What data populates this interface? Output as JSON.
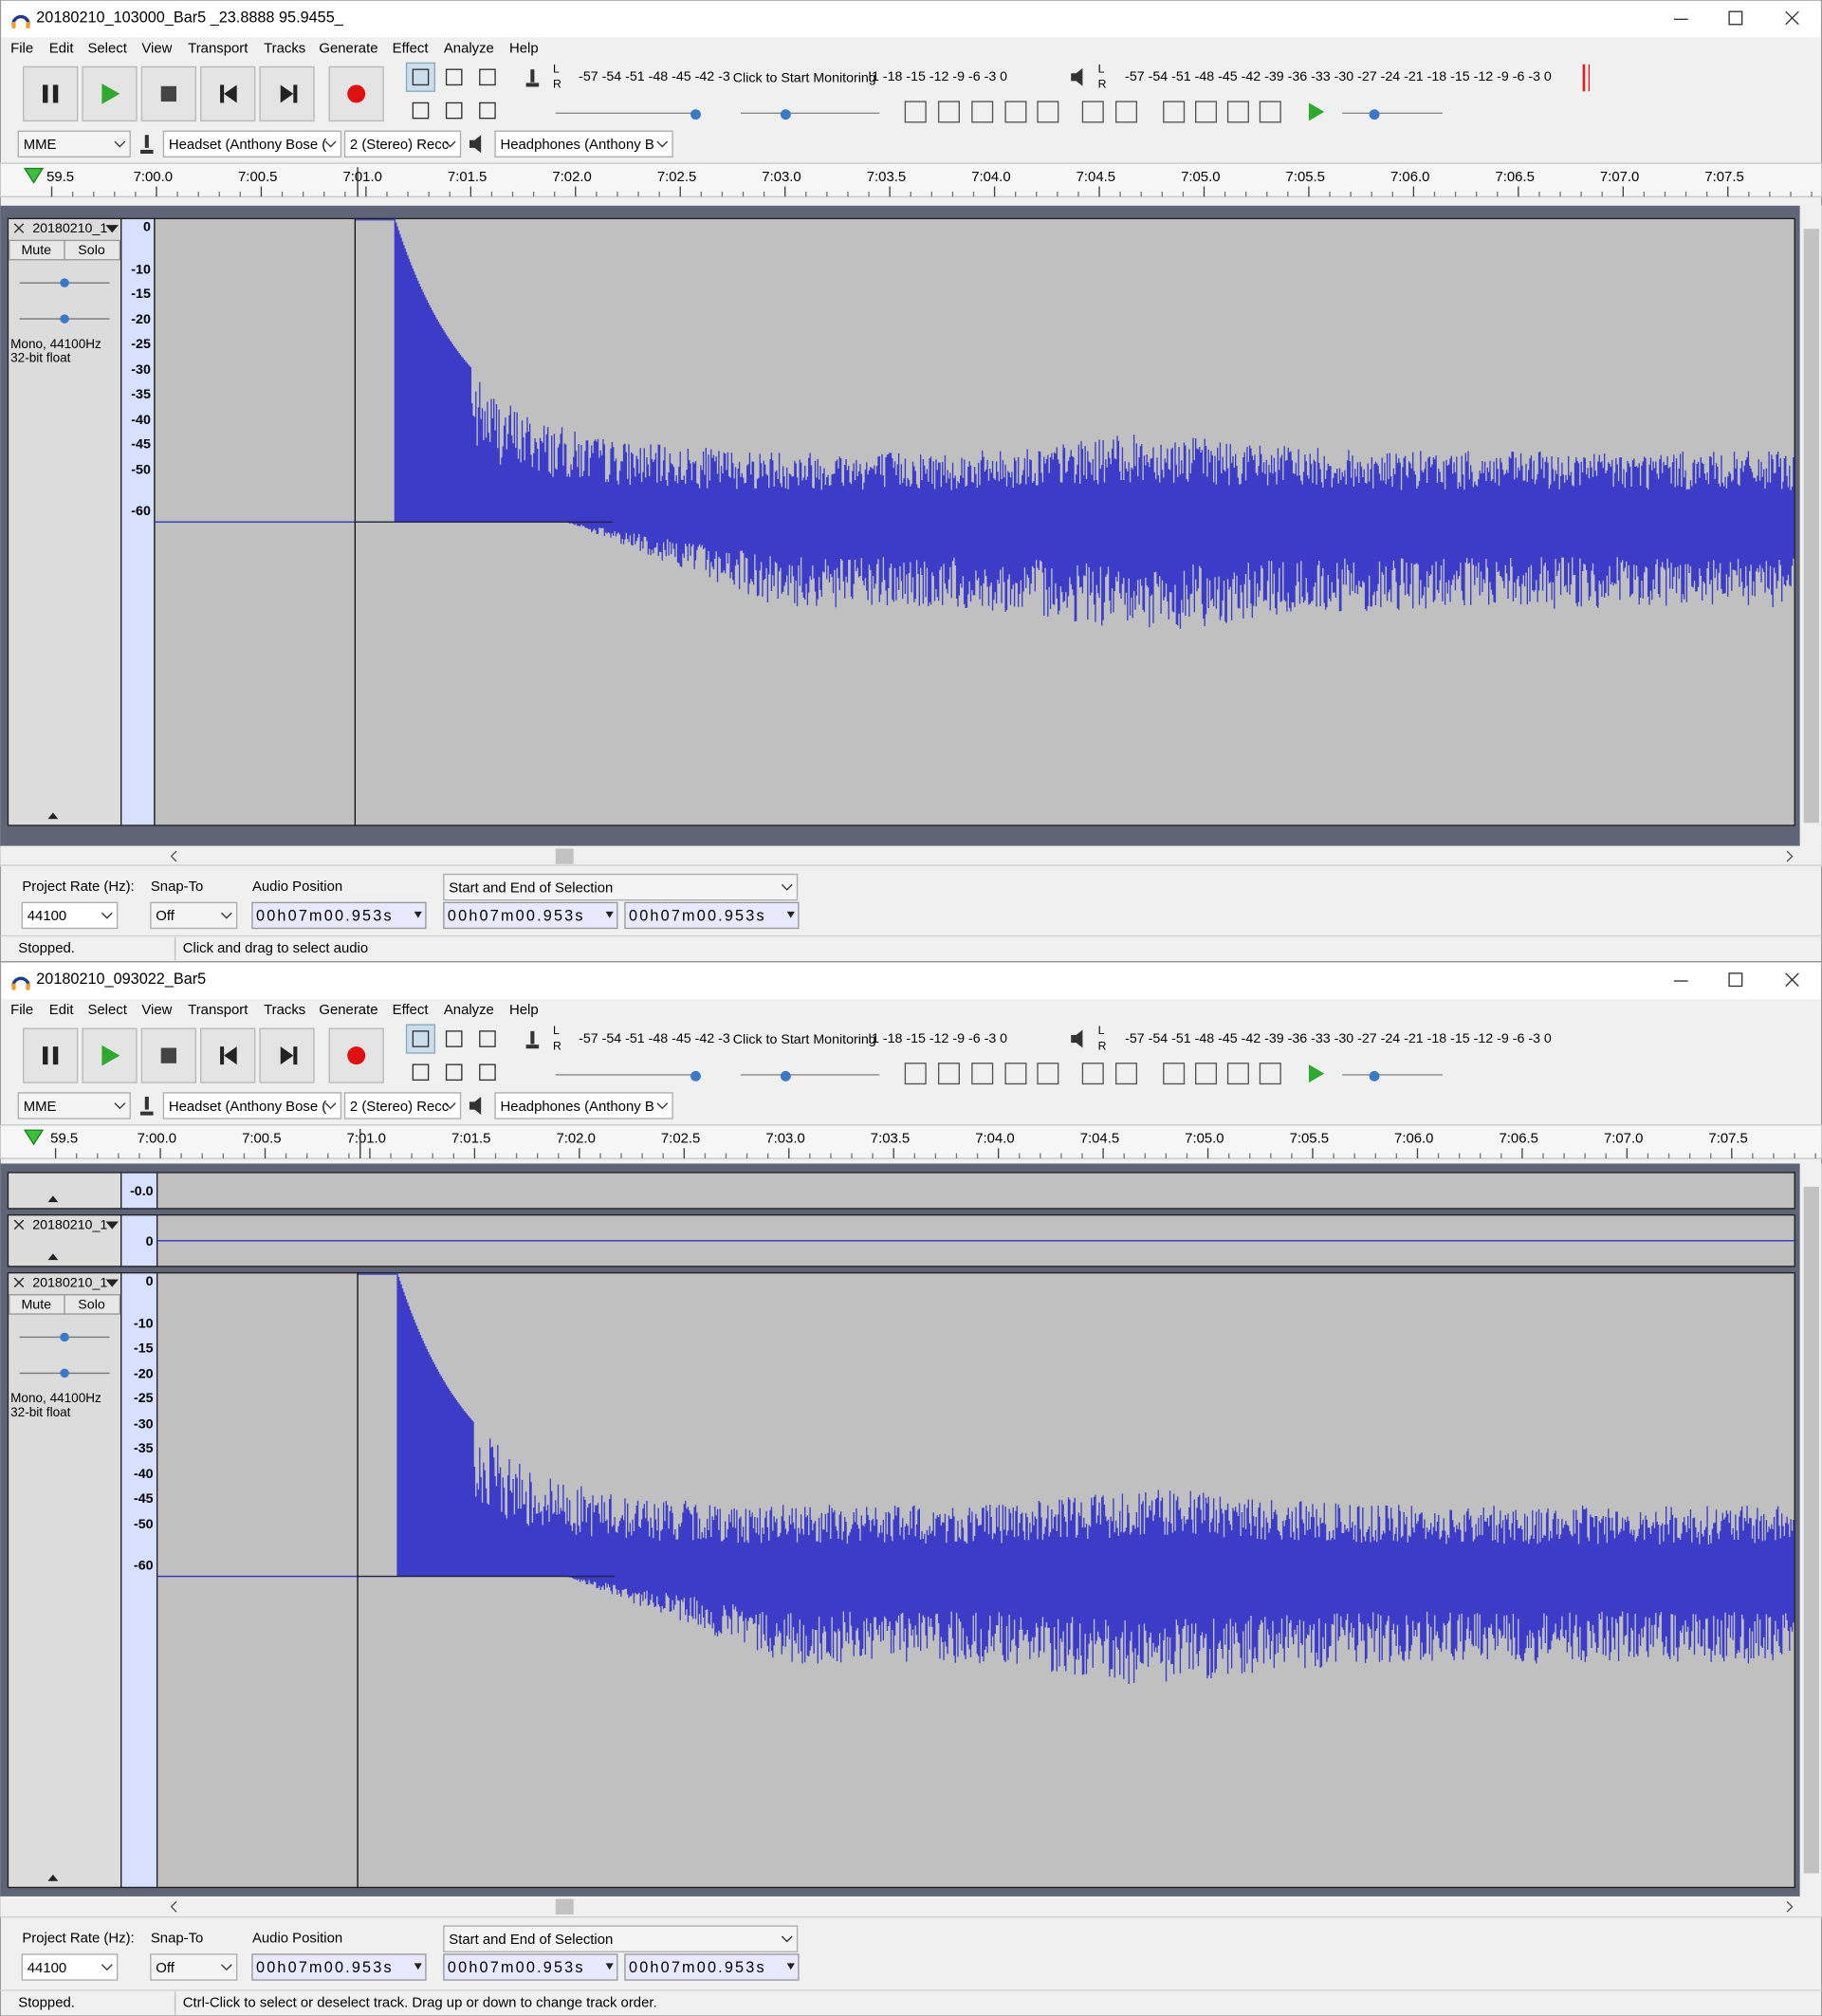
{
  "windows": [
    {
      "title": "20180210_103000_Bar5 _23.8888 95.9455_",
      "menu": [
        "File",
        "Edit",
        "Select",
        "View",
        "Transport",
        "Tracks",
        "Generate",
        "Effect",
        "Analyze",
        "Help"
      ],
      "record_meter": {
        "channels": [
          "L",
          "R"
        ],
        "scale_left": "-57 -54 -51 -48 -45 -42 -3",
        "prompt": "Click to Start Monitoring",
        "scale_right": "!1 -18 -15 -12 -9 -6 -3 0"
      },
      "play_meter": {
        "channels": [
          "L",
          "R"
        ],
        "scale": "-57 -54 -51 -48 -45 -42 -39 -36 -33 -30 -27 -24 -21 -18 -15 -12 -9 -6 -3 0"
      },
      "devices": [
        "MME",
        "Headset (Anthony Bose (",
        "2 (Stereo) Recc",
        "Headphones (Anthony B"
      ],
      "ruler": [
        "59.5",
        "7:00.0",
        "7:00.5",
        "7:01.0",
        "7:01.5",
        "7:02.0",
        "7:02.5",
        "7:03.0",
        "7:03.5",
        "7:04.0",
        "7:04.5",
        "7:05.0",
        "7:05.5",
        "7:06.0",
        "7:06.5",
        "7:07.0",
        "7:07.5"
      ],
      "tracks": [
        {
          "name": "20180210_1",
          "buttons": [
            "Mute",
            "Solo"
          ],
          "info": [
            "Mono, 44100Hz",
            "32-bit float"
          ],
          "scale": [
            "0",
            "-10",
            "-15",
            "-20",
            "-25",
            "-30",
            "-35",
            "-40",
            "-45",
            "-50",
            "-60"
          ]
        }
      ],
      "selection_toolbar": {
        "project_rate_label": "Project Rate (Hz):",
        "project_rate": "44100",
        "snap_label": "Snap-To",
        "snap": "Off",
        "audio_position_label": "Audio Position",
        "audio_position": "00h07m00.953s",
        "selection_mode": "Start and End of Selection",
        "selection_start": "00h07m00.953s",
        "selection_end": "00h07m00.953s"
      },
      "status": [
        "Stopped.",
        "Click and drag to select audio"
      ]
    },
    {
      "title": "20180210_093022_Bar5",
      "menu": [
        "File",
        "Edit",
        "Select",
        "View",
        "Transport",
        "Tracks",
        "Generate",
        "Effect",
        "Analyze",
        "Help"
      ],
      "record_meter": {
        "channels": [
          "L",
          "R"
        ],
        "scale_left": "-57 -54 -51 -48 -45 -42 -3",
        "prompt": "Click to Start Monitoring",
        "scale_right": "!1 -18 -15 -12 -9 -6 -3 0"
      },
      "play_meter": {
        "channels": [
          "L",
          "R"
        ],
        "scale": "-57 -54 -51 -48 -45 -42 -39 -36 -33 -30 -27 -24 -21 -18 -15 -12 -9 -6 -3 0"
      },
      "devices": [
        "MME",
        "Headset (Anthony Bose (",
        "2 (Stereo) Recc",
        "Headphones (Anthony B"
      ],
      "ruler": [
        "59.5",
        "7:00.0",
        "7:00.5",
        "7:01.0",
        "7:01.5",
        "7:02.0",
        "7:02.5",
        "7:03.0",
        "7:03.5",
        "7:04.0",
        "7:04.5",
        "7:05.0",
        "7:05.5",
        "7:06.0",
        "7:06.5",
        "7:07.0",
        "7:07.5"
      ],
      "tracks": [
        {
          "scale": [
            "-0.0"
          ]
        },
        {
          "name": "20180210_1",
          "scale": [
            "0"
          ]
        },
        {
          "name": "20180210_1",
          "buttons": [
            "Mute",
            "Solo"
          ],
          "info": [
            "Mono, 44100Hz",
            "32-bit float"
          ],
          "scale": [
            "0",
            "-10",
            "-15",
            "-20",
            "-25",
            "-30",
            "-35",
            "-40",
            "-45",
            "-50",
            "-60"
          ]
        }
      ],
      "selection_toolbar": {
        "project_rate_label": "Project Rate (Hz):",
        "project_rate": "44100",
        "snap_label": "Snap-To",
        "snap": "Off",
        "audio_position_label": "Audio Position",
        "audio_position": "00h07m00.953s",
        "selection_mode": "Start and End of Selection",
        "selection_start": "00h07m00.953s",
        "selection_end": "00h07m00.953s"
      },
      "status": [
        "Stopped.",
        "Ctrl-Click to select or deselect track. Drag up or down to change track order."
      ]
    }
  ]
}
